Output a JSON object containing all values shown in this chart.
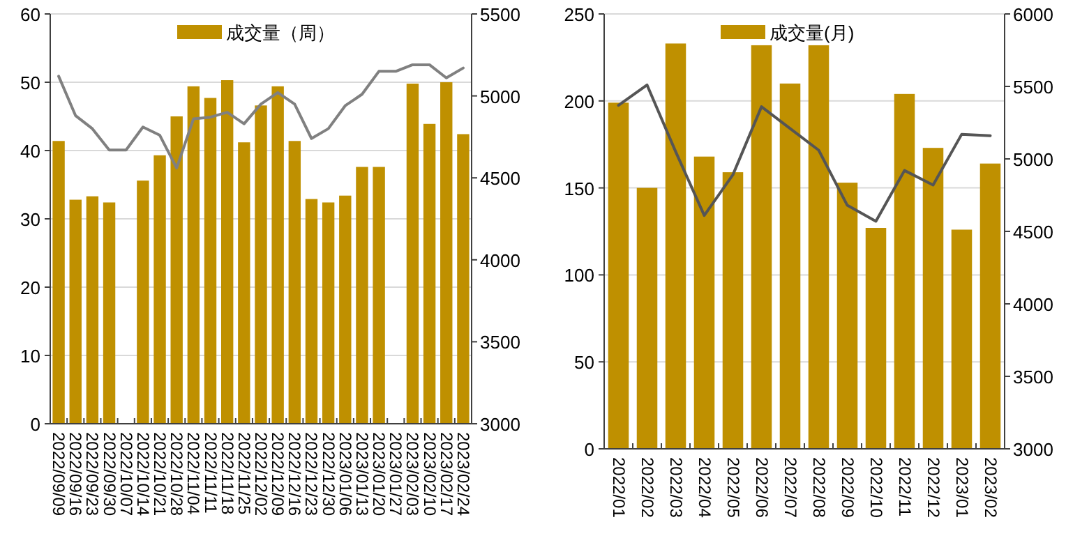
{
  "chart_data": [
    {
      "type": "bar",
      "categories": [
        "2022/09/09",
        "2022/09/16",
        "2022/09/23",
        "2022/09/30",
        "2022/10/07",
        "2022/10/14",
        "2022/10/21",
        "2022/10/28",
        "2022/11/04",
        "2022/11/11",
        "2022/11/18",
        "2022/11/25",
        "2022/12/02",
        "2022/12/09",
        "2022/12/16",
        "2022/12/23",
        "2022/12/30",
        "2023/01/06",
        "2023/01/13",
        "2023/01/20",
        "2023/01/27",
        "2023/02/03",
        "2023/02/10",
        "2023/02/17",
        "2023/02/24"
      ],
      "series": [
        {
          "name": "成交量（周）",
          "color": "#bf9000",
          "values": [
            41.4,
            32.8,
            33.3,
            32.4,
            null,
            35.6,
            39.3,
            45.0,
            49.4,
            47.7,
            50.3,
            41.2,
            46.6,
            49.4,
            41.4,
            32.9,
            32.4,
            33.4,
            37.6,
            37.6,
            null,
            49.8,
            43.9,
            50.0,
            42.4
          ]
        },
        {
          "type": "line",
          "axis": "y2",
          "color": "#808080",
          "values": [
            5120,
            4880,
            4800,
            4670,
            4670,
            4810,
            4760,
            4560,
            4860,
            4870,
            4900,
            4830,
            4950,
            5020,
            4950,
            4740,
            4800,
            4940,
            5010,
            5150,
            5150,
            5190,
            5190,
            5110,
            5170
          ]
        }
      ],
      "ylim": [
        0,
        60
      ],
      "yticks": [
        0,
        10,
        20,
        30,
        40,
        50,
        60
      ],
      "y2lim": [
        3000,
        5500
      ],
      "y2ticks": [
        3000,
        3500,
        4000,
        4500,
        5000,
        5500
      ],
      "grid": "y",
      "legend": "top"
    },
    {
      "type": "bar",
      "categories": [
        "2022/01",
        "2022/02",
        "2022/03",
        "2022/04",
        "2022/05",
        "2022/06",
        "2022/07",
        "2022/08",
        "2022/09",
        "2022/10",
        "2022/11",
        "2022/12",
        "2023/01",
        "2023/02"
      ],
      "series": [
        {
          "name": "成交量(月)",
          "color": "#bf9000",
          "values": [
            199,
            150,
            233,
            168,
            159,
            232,
            210,
            232,
            153,
            127,
            204,
            173,
            126,
            164
          ]
        },
        {
          "type": "line",
          "axis": "y2",
          "color": "#555555",
          "values": [
            5370,
            5510,
            5050,
            4610,
            4890,
            5360,
            5210,
            5060,
            4680,
            4570,
            4920,
            4820,
            5170,
            5160
          ]
        }
      ],
      "ylim": [
        0,
        250
      ],
      "yticks": [
        0,
        50,
        100,
        150,
        200,
        250
      ],
      "y2lim": [
        3000,
        6000
      ],
      "y2ticks": [
        3000,
        3500,
        4000,
        4500,
        5000,
        5500,
        6000
      ],
      "grid": "y",
      "legend": "top"
    }
  ]
}
